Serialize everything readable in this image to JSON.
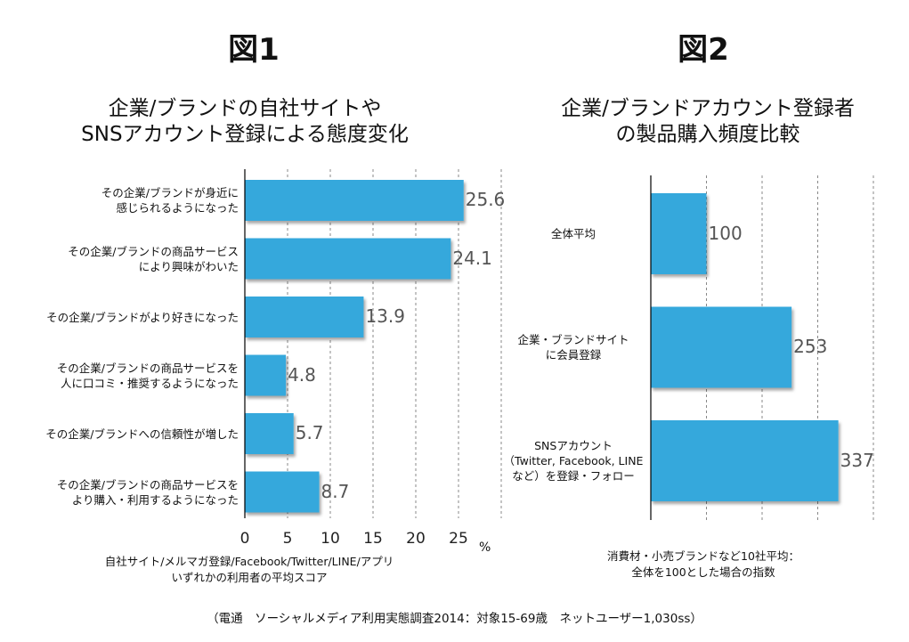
{
  "chart_data": [
    {
      "type": "bar",
      "orientation": "horizontal",
      "figure_label": "図1",
      "title": "企業/ブランドの自社サイトや\nSNSアカウント登録による態度変化",
      "categories": [
        "その企業/ブランドが身近に\n感じられるようになった",
        "その企業/ブランドの商品サービス\nにより興味がわいた",
        "その企業/ブランドがより好きになった",
        "その企業/ブランドの商品サービスを\n人に口コミ・推奨するようになった",
        "その企業/ブランドへの信頼性が増した",
        "その企業/ブランドの商品サービスを\nより購入・利用するようになった"
      ],
      "values": [
        25.6,
        24.1,
        13.9,
        4.8,
        5.7,
        8.7
      ],
      "value_labels": [
        "25.6",
        "24.1",
        "13.9",
        "4.8",
        "5.7",
        "8.7"
      ],
      "xlim": [
        0,
        30
      ],
      "ticks": [
        "0",
        "5",
        "10",
        "15",
        "20",
        "25"
      ],
      "unit": "%",
      "xlabel": "自社サイト/メルマガ登録/Facebook/Twitter/LINE/アプリ\nいずれかの利用者の平均スコア",
      "grid": true,
      "bar_color": "#35a8dc"
    },
    {
      "type": "bar",
      "orientation": "horizontal",
      "figure_label": "図2",
      "title": "企業/ブランドアカウント登録者\nの製品購入頻度比較",
      "categories": [
        "全体平均",
        "企業・ブランドサイト\nに会員登録",
        "SNSアカウント\n（Twitter, Facebook, LINE\nなど）を登録・フォロー"
      ],
      "values": [
        100,
        253,
        337
      ],
      "value_labels": [
        "100",
        "253",
        "337"
      ],
      "xlim": [
        0,
        400
      ],
      "xlabel": "消費材・小売ブランドなど10社平均：\n全体を100とした場合の指数",
      "grid": true,
      "bar_color": "#35a8dc"
    }
  ],
  "source": "（電通　ソーシャルメディア利用実態調査2014：対象15-69歳　ネットユーザー1,030ss）"
}
